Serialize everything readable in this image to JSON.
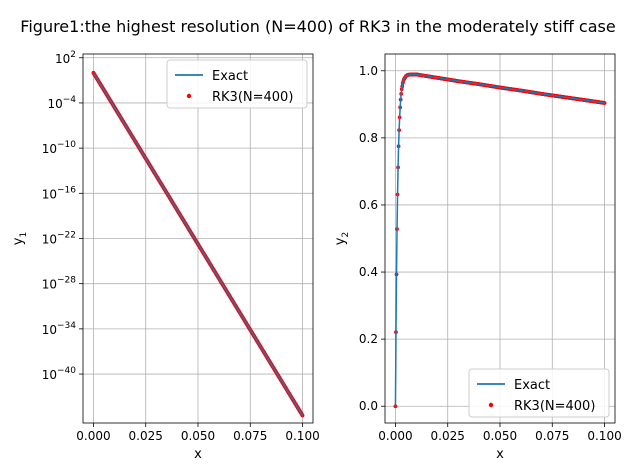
{
  "figure_title": "Figure1:the highest resolution (N=400) of RK3 in the moderately stiff case",
  "chart_data": [
    {
      "type": "line",
      "xlabel": "x",
      "ylabel": "y",
      "ylabel_sub": "1",
      "yscale": "log",
      "xlim": [
        -0.005,
        0.105
      ],
      "ylim_exp": [
        -46.5,
        2.5
      ],
      "grid": true,
      "legend_position": "top-right",
      "x_ticks": [
        "0.000",
        "0.025",
        "0.050",
        "0.075",
        "0.100"
      ],
      "x_tick_values": [
        0,
        0.025,
        0.05,
        0.075,
        0.1
      ],
      "y_tick_base": "10",
      "y_tick_exponents": [
        "2",
        "−4",
        "−10",
        "−16",
        "−22",
        "−28",
        "−34",
        "−40"
      ],
      "y_tick_exp_values": [
        2,
        -4,
        -10,
        -16,
        -22,
        -28,
        -34,
        -40
      ],
      "series": [
        {
          "name": "Exact",
          "kind": "line",
          "color": "#1f77b4",
          "x": [
            0,
            0.1
          ],
          "log10_y": [
            0,
            -45.5
          ]
        },
        {
          "name": "RK3(N=400)",
          "kind": "scatter",
          "color": "#ff0000",
          "n_points": 401,
          "x": [
            0,
            0.1
          ],
          "log10_y": [
            0,
            -45.5
          ]
        }
      ]
    },
    {
      "type": "line",
      "xlabel": "x",
      "ylabel": "y",
      "ylabel_sub": "2",
      "yscale": "linear",
      "xlim": [
        -0.005,
        0.105
      ],
      "ylim": [
        -0.05,
        1.05
      ],
      "grid": true,
      "legend_position": "bottom-right",
      "x_ticks": [
        "0.000",
        "0.025",
        "0.050",
        "0.075",
        "0.100"
      ],
      "x_tick_values": [
        0,
        0.025,
        0.05,
        0.075,
        0.1
      ],
      "y_ticks": [
        "0.0",
        "0.2",
        "0.4",
        "0.6",
        "0.8",
        "1.0"
      ],
      "y_tick_values": [
        0,
        0.2,
        0.4,
        0.6,
        0.8,
        1.0
      ],
      "series": [
        {
          "name": "Exact",
          "kind": "line",
          "color": "#1f77b4",
          "x": [
            0,
            0.00025,
            0.0005,
            0.00075,
            0.001,
            0.00125,
            0.0015,
            0.00175,
            0.002,
            0.00225,
            0.0025,
            0.00275,
            0.003,
            0.0035,
            0.004,
            0.005,
            0.006,
            0.008,
            0.01,
            0.02,
            0.03,
            0.04,
            0.05,
            0.06,
            0.07,
            0.08,
            0.09,
            0.1
          ],
          "y": [
            0,
            0.221,
            0.393,
            0.528,
            0.631,
            0.712,
            0.775,
            0.823,
            0.861,
            0.891,
            0.914,
            0.931,
            0.945,
            0.963,
            0.974,
            0.984,
            0.988,
            0.989,
            0.989,
            0.979,
            0.969,
            0.96,
            0.95,
            0.941,
            0.931,
            0.922,
            0.913,
            0.904
          ]
        },
        {
          "name": "RK3(N=400)",
          "kind": "scatter",
          "color": "#ff0000",
          "n_points": 401,
          "x": [
            0,
            0.00025,
            0.0005,
            0.00075,
            0.001,
            0.00125,
            0.0015,
            0.00175,
            0.002,
            0.00225,
            0.0025,
            0.00275,
            0.003,
            0.0035,
            0.004,
            0.005,
            0.006,
            0.008,
            0.01,
            0.02,
            0.03,
            0.04,
            0.05,
            0.06,
            0.07,
            0.08,
            0.09,
            0.1
          ],
          "y": [
            0,
            0.221,
            0.393,
            0.528,
            0.631,
            0.712,
            0.775,
            0.823,
            0.861,
            0.891,
            0.914,
            0.931,
            0.945,
            0.963,
            0.974,
            0.984,
            0.988,
            0.989,
            0.989,
            0.979,
            0.969,
            0.96,
            0.95,
            0.941,
            0.931,
            0.922,
            0.913,
            0.904
          ]
        }
      ]
    }
  ]
}
